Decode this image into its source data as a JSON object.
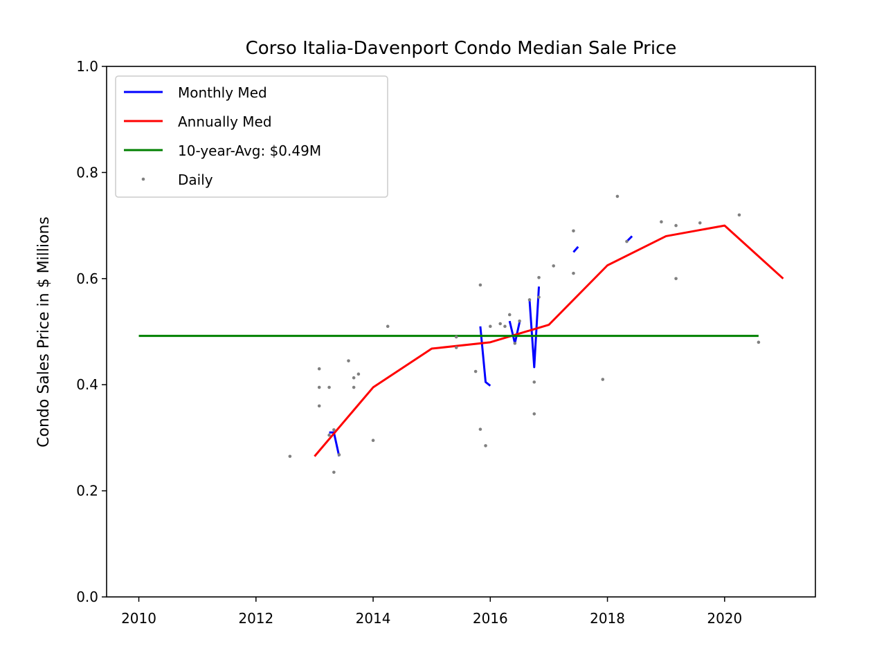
{
  "chart_data": {
    "type": "line",
    "title": "Corso Italia-Davenport Condo Median Sale Price",
    "xlabel": "",
    "ylabel": "Condo Sales Price in $ Millions",
    "xlim": [
      2009.45,
      2021.55
    ],
    "ylim": [
      0.0,
      1.0
    ],
    "xticks": [
      2010,
      2012,
      2014,
      2016,
      2018,
      2020
    ],
    "yticks": [
      "0.0",
      "0.2",
      "0.4",
      "0.6",
      "0.8",
      "1.0"
    ],
    "grid": false,
    "legend_position": "upper-left",
    "series": [
      {
        "name": "Monthly Med",
        "color": "#0000ff",
        "kind": "line",
        "segments": [
          [
            [
              2013.25,
              0.31
            ],
            [
              2013.33,
              0.31
            ],
            [
              2013.42,
              0.265
            ]
          ],
          [
            [
              2015.83,
              0.51
            ],
            [
              2015.92,
              0.405
            ],
            [
              2016.0,
              0.398
            ]
          ],
          [
            [
              2016.33,
              0.52
            ],
            [
              2016.42,
              0.478
            ],
            [
              2016.5,
              0.518
            ]
          ],
          [
            [
              2016.67,
              0.56
            ],
            [
              2016.75,
              0.433
            ],
            [
              2016.83,
              0.585
            ]
          ],
          [
            [
              2017.42,
              0.65
            ],
            [
              2017.5,
              0.66
            ]
          ],
          [
            [
              2018.33,
              0.67
            ],
            [
              2018.42,
              0.68
            ]
          ]
        ]
      },
      {
        "name": "Annually Med",
        "color": "#ff0000",
        "kind": "line",
        "x": [
          2013,
          2014,
          2015,
          2016,
          2017,
          2018,
          2019,
          2020,
          2021
        ],
        "y": [
          0.265,
          0.395,
          0.468,
          0.48,
          0.513,
          0.625,
          0.68,
          0.7,
          0.6
        ]
      },
      {
        "name": "10-year-Avg: $0.49M",
        "color": "#008000",
        "kind": "hline",
        "x": [
          2010,
          2020.58
        ],
        "y": 0.492
      },
      {
        "name": "Daily",
        "color": "#808080",
        "kind": "scatter",
        "points": [
          [
            2012.58,
            0.265
          ],
          [
            2013.08,
            0.43
          ],
          [
            2013.08,
            0.395
          ],
          [
            2013.08,
            0.36
          ],
          [
            2013.25,
            0.395
          ],
          [
            2013.25,
            0.305
          ],
          [
            2013.33,
            0.315
          ],
          [
            2013.33,
            0.235
          ],
          [
            2013.42,
            0.268
          ],
          [
            2013.58,
            0.445
          ],
          [
            2013.67,
            0.413
          ],
          [
            2013.67,
            0.395
          ],
          [
            2013.75,
            0.42
          ],
          [
            2014.0,
            0.295
          ],
          [
            2014.25,
            0.51
          ],
          [
            2015.42,
            0.47
          ],
          [
            2015.42,
            0.49
          ],
          [
            2015.75,
            0.425
          ],
          [
            2015.83,
            0.588
          ],
          [
            2015.83,
            0.316
          ],
          [
            2015.92,
            0.285
          ],
          [
            2016.0,
            0.51
          ],
          [
            2016.17,
            0.515
          ],
          [
            2016.25,
            0.51
          ],
          [
            2016.33,
            0.532
          ],
          [
            2016.42,
            0.478
          ],
          [
            2016.5,
            0.52
          ],
          [
            2016.67,
            0.56
          ],
          [
            2016.75,
            0.405
          ],
          [
            2016.75,
            0.345
          ],
          [
            2016.83,
            0.602
          ],
          [
            2016.83,
            0.565
          ],
          [
            2017.08,
            0.624
          ],
          [
            2017.42,
            0.69
          ],
          [
            2017.42,
            0.61
          ],
          [
            2017.92,
            0.41
          ],
          [
            2018.17,
            0.755
          ],
          [
            2018.33,
            0.67
          ],
          [
            2018.92,
            0.707
          ],
          [
            2019.17,
            0.7
          ],
          [
            2019.17,
            0.6
          ],
          [
            2019.58,
            0.705
          ],
          [
            2020.25,
            0.72
          ],
          [
            2020.58,
            0.48
          ]
        ]
      }
    ]
  }
}
